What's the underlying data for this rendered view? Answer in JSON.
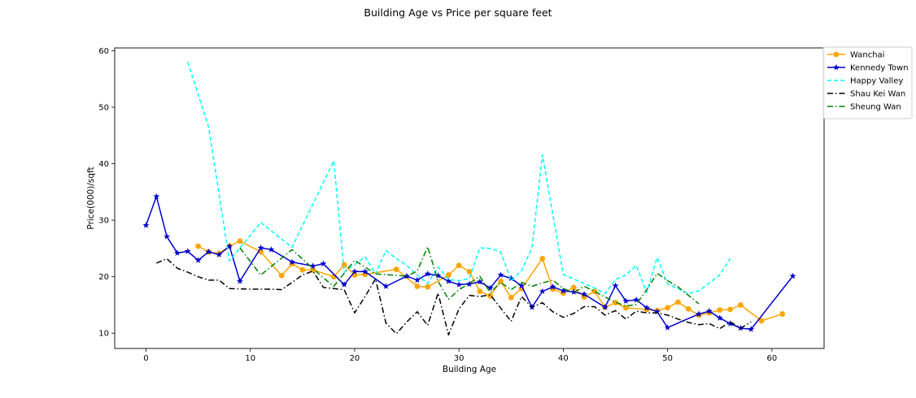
{
  "chart_data": {
    "type": "line",
    "title": "Building Age vs Price per square feet",
    "xlabel": "Building Age",
    "ylabel": "Price(000)/sqft",
    "xlim": [
      -3,
      65
    ],
    "ylim": [
      7.3,
      60.5
    ],
    "xticks": [
      0,
      10,
      20,
      30,
      40,
      50,
      60
    ],
    "yticks": [
      10,
      20,
      30,
      40,
      50,
      60
    ],
    "grid": false,
    "legend_position": "outside-top-right",
    "series": [
      {
        "name": "Wanchai",
        "color": "#ffa500",
        "style": "solid",
        "marker": "circle",
        "x": [
          5,
          6,
          7,
          8,
          9,
          11,
          13,
          14,
          15,
          16,
          18,
          19,
          20,
          21,
          24,
          26,
          27,
          29,
          30,
          31,
          32,
          33,
          34,
          35,
          36,
          38,
          39,
          40,
          41,
          42,
          43,
          44,
          45,
          46,
          48,
          49,
          50,
          51,
          52,
          53,
          54,
          55,
          56,
          57,
          59,
          61
        ],
        "y": [
          25.4,
          24.4,
          24.1,
          25.4,
          26.3,
          24.4,
          20.2,
          22.3,
          21.2,
          21.2,
          20.0,
          22.1,
          20.3,
          20.4,
          21.3,
          18.3,
          18.2,
          20.3,
          22.0,
          20.9,
          17.4,
          16.6,
          19.2,
          16.3,
          17.9,
          23.2,
          17.8,
          17.1,
          18.1,
          16.4,
          17.4,
          14.6,
          15.4,
          14.5,
          14.2,
          14.0,
          14.5,
          15.5,
          14.3,
          13.2,
          13.6,
          14.1,
          14.2,
          15.0,
          12.2,
          13.4
        ]
      },
      {
        "name": "Kennedy Town",
        "color": "#0000cd",
        "style": "solid",
        "marker": "star",
        "x": [
          0,
          1,
          2,
          3,
          4,
          5,
          6,
          7,
          8,
          9,
          11,
          12,
          14,
          16,
          17,
          19,
          20,
          21,
          23,
          25,
          26,
          27,
          28,
          29,
          30,
          31,
          32,
          33,
          34,
          35,
          36,
          37,
          38,
          39,
          40,
          41,
          42,
          44,
          45,
          46,
          47,
          48,
          49,
          50,
          53,
          54,
          55,
          56,
          57,
          58,
          62
        ],
        "y": [
          29.1,
          34.2,
          27.1,
          24.2,
          24.5,
          22.9,
          24.4,
          23.9,
          25.4,
          19.2,
          25.1,
          24.8,
          22.6,
          21.9,
          22.3,
          18.6,
          20.9,
          20.9,
          18.3,
          20.1,
          19.4,
          20.5,
          20.2,
          19.2,
          18.6,
          18.7,
          19.1,
          18.0,
          20.3,
          19.7,
          18.4,
          14.6,
          17.4,
          18.2,
          17.5,
          17.3,
          16.9,
          14.6,
          18.4,
          15.7,
          15.9,
          14.5,
          13.8,
          11.0,
          13.4,
          13.9,
          12.7,
          11.7,
          10.9,
          10.7,
          20.1
        ]
      },
      {
        "name": "Happy Valley",
        "color": "#00ffff",
        "style": "dashed",
        "marker": "none",
        "x": [
          4,
          6,
          8,
          11,
          14,
          18,
          19,
          21,
          22,
          23,
          24,
          25,
          26,
          27,
          28,
          29,
          30,
          31,
          32,
          33,
          34,
          35,
          36,
          37,
          38,
          40,
          41,
          43,
          44,
          45,
          46,
          47,
          48,
          49,
          50,
          52,
          53,
          55,
          56
        ],
        "y": [
          58.0,
          46.5,
          22.8,
          29.6,
          25.2,
          40.5,
          20.8,
          23.5,
          20.5,
          24.6,
          23.2,
          22.0,
          20.3,
          18.8,
          21.7,
          19.5,
          19.3,
          19.7,
          25.1,
          25.0,
          24.4,
          19.3,
          21.1,
          25.1,
          41.6,
          20.4,
          19.6,
          18.0,
          17.0,
          19.5,
          20.3,
          22.0,
          17.2,
          23.4,
          18.7,
          17.0,
          17.5,
          20.3,
          23.2
        ]
      },
      {
        "name": "Shau Kei Wan",
        "color": "#000000",
        "style": "dashdot",
        "marker": "none",
        "x": [
          1,
          2,
          3,
          4,
          5,
          6,
          7,
          8,
          10,
          11,
          12,
          13,
          14,
          15,
          16,
          17,
          18,
          19,
          20,
          21,
          22,
          23,
          24,
          25,
          26,
          27,
          28,
          29,
          30,
          31,
          32,
          33,
          35,
          36,
          37,
          38,
          39,
          40,
          41,
          42,
          43,
          44,
          45,
          46,
          47,
          48,
          49,
          50,
          51,
          52,
          53,
          54,
          55,
          56,
          57,
          58
        ],
        "y": [
          22.4,
          23.2,
          21.5,
          20.8,
          20.0,
          19.4,
          19.4,
          17.9,
          17.8,
          17.8,
          17.8,
          17.7,
          19.0,
          20.3,
          21.0,
          18.1,
          17.9,
          17.7,
          13.6,
          16.5,
          19.6,
          11.8,
          9.9,
          12.0,
          13.8,
          11.4,
          17.1,
          9.7,
          14.3,
          16.7,
          16.5,
          16.8,
          12.1,
          16.5,
          14.6,
          15.4,
          13.8,
          12.8,
          13.5,
          14.7,
          14.7,
          13.2,
          14.0,
          12.5,
          13.9,
          13.6,
          13.6,
          13.2,
          12.5,
          11.9,
          11.5,
          11.7,
          10.8,
          12.0,
          10.9,
          12.0
        ]
      },
      {
        "name": "Sheung Wan",
        "color": "#008000",
        "style": "dashdot",
        "marker": "none",
        "x": [
          9,
          11,
          14,
          17,
          18,
          20,
          22,
          25,
          26,
          27,
          28,
          29,
          30,
          31,
          32,
          33,
          34,
          35,
          36,
          37,
          38,
          39,
          40,
          41,
          42,
          43,
          44,
          45,
          46,
          47,
          48,
          49,
          50,
          51,
          52,
          53
        ],
        "y": [
          25.1,
          20.3,
          24.8,
          19.8,
          18.3,
          22.9,
          20.5,
          20.1,
          21.0,
          25.3,
          19.2,
          16.0,
          17.7,
          18.8,
          20.1,
          17.2,
          19.0,
          17.7,
          19.0,
          18.3,
          18.9,
          19.4,
          17.9,
          17.2,
          18.3,
          17.4,
          16.4,
          15.5,
          14.8,
          15.1,
          17.7,
          20.6,
          19.3,
          18.2,
          16.7,
          15.2
        ]
      }
    ]
  }
}
